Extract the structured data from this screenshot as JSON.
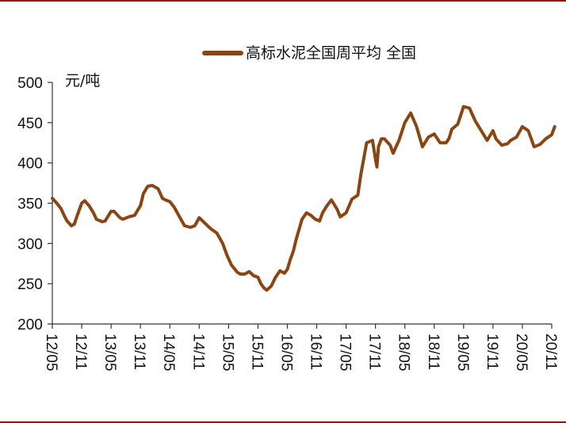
{
  "chart_data": {
    "type": "line",
    "ylabel": "元/吨",
    "ylim": [
      200,
      500
    ],
    "yticks": [
      200,
      250,
      300,
      350,
      400,
      450,
      500
    ],
    "x_tick_labels": [
      "12/05",
      "12/11",
      "13/05",
      "13/11",
      "14/05",
      "14/11",
      "15/05",
      "15/11",
      "16/05",
      "16/11",
      "17/05",
      "17/11",
      "18/05",
      "18/11",
      "19/05",
      "19/11",
      "20/05",
      "20/11"
    ],
    "grid": false,
    "legend_position": "top",
    "series": [
      {
        "name": "高标水泥全国周平均 全国",
        "color": "#8b4513",
        "x": [
          0,
          0.15,
          0.3,
          0.4,
          0.5,
          0.65,
          0.75,
          0.85,
          1,
          1.1,
          1.25,
          1.4,
          1.5,
          1.7,
          1.8,
          2,
          2.1,
          2.3,
          2.4,
          2.6,
          2.8,
          3,
          3.1,
          3.25,
          3.4,
          3.6,
          3.75,
          3.85,
          4,
          4.15,
          4.3,
          4.5,
          4.7,
          4.85,
          5,
          5.2,
          5.4,
          5.6,
          5.8,
          5.95,
          6.1,
          6.3,
          6.4,
          6.55,
          6.7,
          6.85,
          7,
          7.1,
          7.2,
          7.3,
          7.45,
          7.6,
          7.75,
          7.9,
          8,
          8.1,
          8.2,
          8.3,
          8.5,
          8.65,
          8.8,
          8.95,
          9.1,
          9.2,
          9.35,
          9.5,
          9.7,
          9.8,
          10,
          10.2,
          10.4,
          10.5,
          10.7,
          10.9,
          11,
          11.05,
          11.1,
          11.2,
          11.3,
          11.5,
          11.6,
          11.8,
          12,
          12.2,
          12.4,
          12.6,
          12.8,
          13,
          13.2,
          13.4,
          13.5,
          13.6,
          13.8,
          14,
          14.2,
          14.4,
          14.6,
          14.8,
          15,
          15.1,
          15.3,
          15.5,
          15.6,
          15.8,
          16,
          16.2,
          16.4,
          16.6,
          16.8,
          17,
          17.1
        ],
        "values": [
          356,
          350,
          343,
          335,
          328,
          322,
          324,
          335,
          350,
          353,
          347,
          338,
          330,
          327,
          328,
          340,
          340,
          332,
          330,
          333,
          335,
          347,
          362,
          371,
          372,
          368,
          356,
          354,
          352,
          345,
          335,
          322,
          320,
          322,
          332,
          325,
          318,
          313,
          300,
          285,
          273,
          264,
          262,
          262,
          265,
          260,
          258,
          250,
          245,
          242,
          247,
          258,
          266,
          263,
          268,
          280,
          290,
          305,
          330,
          338,
          335,
          330,
          328,
          338,
          347,
          354,
          342,
          333,
          338,
          355,
          360,
          385,
          425,
          428,
          405,
          395,
          420,
          430,
          430,
          422,
          412,
          428,
          450,
          462,
          445,
          420,
          432,
          436,
          425,
          425,
          430,
          442,
          448,
          470,
          468,
          452,
          440,
          428,
          440,
          430,
          422,
          424,
          428,
          432,
          445,
          440,
          420,
          423,
          430,
          435,
          445
        ]
      }
    ]
  }
}
